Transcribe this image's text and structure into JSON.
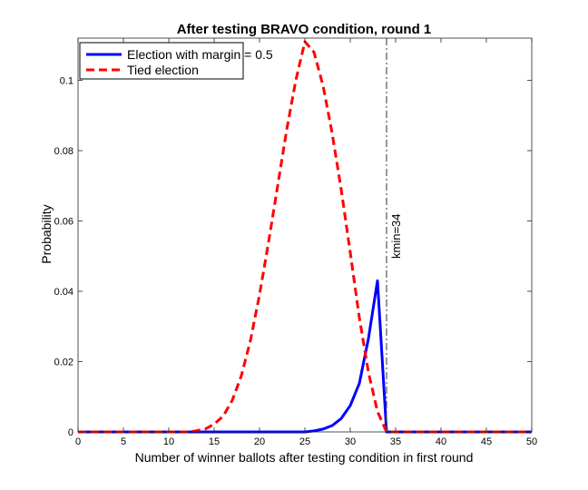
{
  "chart_data": {
    "type": "line",
    "title": "After testing BRAVO condition, round 1",
    "xlabel": "Number of winner ballots after testing condition in first round",
    "ylabel": "Probability",
    "xlim": [
      0,
      50
    ],
    "ylim": [
      0,
      0.112
    ],
    "x_ticks": [
      0,
      5,
      10,
      15,
      20,
      25,
      30,
      35,
      40,
      45,
      50
    ],
    "x_tick_labels": [
      "0",
      "5",
      "10",
      "15",
      "20",
      "25",
      "30",
      "35",
      "40",
      "45",
      "50"
    ],
    "y_ticks": [
      0,
      0.02,
      0.04,
      0.06,
      0.08,
      0.1
    ],
    "y_tick_labels": [
      "0",
      "0.02",
      "0.04",
      "0.06",
      "0.08",
      "0.1"
    ],
    "grid": false,
    "legend_position": "top-left",
    "series": [
      {
        "name": "Election with margin = 0.5",
        "color": "#0000ff",
        "style": "solid",
        "x": [
          0,
          1,
          2,
          3,
          4,
          5,
          6,
          7,
          8,
          9,
          10,
          11,
          12,
          13,
          14,
          15,
          16,
          17,
          18,
          19,
          20,
          21,
          22,
          23,
          24,
          25,
          26,
          27,
          28,
          29,
          30,
          31,
          32,
          33,
          34,
          35,
          36,
          37,
          38,
          39,
          40,
          41,
          42,
          43,
          44,
          45,
          46,
          47,
          48,
          49,
          50
        ],
        "y": [
          0,
          0,
          0,
          0,
          0,
          0,
          0,
          0,
          0,
          0,
          0,
          0,
          0,
          0,
          0,
          0,
          0,
          0,
          0,
          0,
          0,
          0,
          0,
          0,
          0,
          0,
          0.0003,
          0.0008,
          0.0018,
          0.0038,
          0.0075,
          0.0138,
          0.0265,
          0.043,
          0,
          0,
          0,
          0,
          0,
          0,
          0,
          0,
          0,
          0,
          0,
          0,
          0,
          0,
          0,
          0,
          0
        ]
      },
      {
        "name": "Tied election",
        "color": "#ff0000",
        "style": "dashed",
        "x": [
          0,
          1,
          2,
          3,
          4,
          5,
          6,
          7,
          8,
          9,
          10,
          11,
          12,
          13,
          14,
          15,
          16,
          17,
          18,
          19,
          20,
          21,
          22,
          23,
          24,
          25,
          26,
          27,
          28,
          29,
          30,
          31,
          32,
          33,
          34,
          35,
          36,
          37,
          38,
          39,
          40,
          41,
          42,
          43,
          44,
          45,
          46,
          47,
          48,
          49,
          50
        ],
        "y": [
          0,
          0,
          0,
          0,
          0,
          0,
          0,
          0,
          0,
          0,
          0,
          0,
          0,
          0.0003,
          0.0008,
          0.0022,
          0.0045,
          0.009,
          0.016,
          0.026,
          0.039,
          0.054,
          0.07,
          0.086,
          0.1,
          0.111,
          0.108,
          0.0985,
          0.085,
          0.069,
          0.051,
          0.0325,
          0.017,
          0.0058,
          0,
          0,
          0,
          0,
          0,
          0,
          0,
          0,
          0,
          0,
          0,
          0,
          0,
          0,
          0,
          0,
          0
        ]
      }
    ],
    "vline": {
      "x": 34,
      "label": "kmin=34",
      "color": "#555555",
      "style": "dash-dot"
    }
  }
}
